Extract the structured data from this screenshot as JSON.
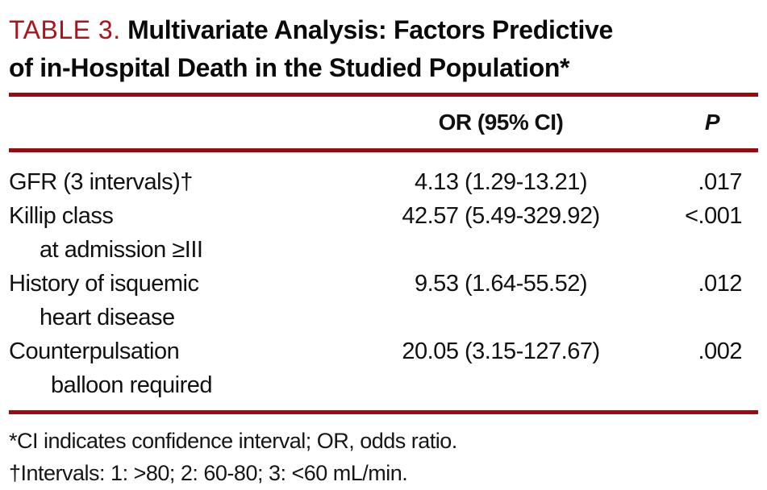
{
  "title": {
    "label": "TABLE 3.",
    "line1": "Multivariate Analysis: Factors Predictive",
    "line2": "of in-Hospital Death in the Studied Population*"
  },
  "table": {
    "header": {
      "or": "OR (95% CI)",
      "p": "P"
    },
    "rows": [
      {
        "factor": "GFR (3 intervals)†",
        "or": "4.13 (1.29-13.21)",
        "p": ".017"
      },
      {
        "factor": "Killip class",
        "factor_cont": "at admission ≥III",
        "or": "42.57 (5.49-329.92)",
        "p": "<.001"
      },
      {
        "factor": "History of isquemic",
        "factor_cont": "heart disease",
        "or": "9.53 (1.64-55.52)",
        "p": ".012"
      },
      {
        "factor": "Counterpulsation",
        "factor_cont": "balloon required",
        "or": "20.05 (3.15-127.67)",
        "p": ".002"
      }
    ]
  },
  "footnotes": [
    "*CI indicates confidence interval; OR, odds ratio.",
    "†Intervals: 1: >80; 2: 60-80; 3: <60 mL/min."
  ],
  "colors": {
    "title_accent": "#b0121a",
    "rule": "#9c0a10",
    "text": "#111111",
    "background": "#ffffff"
  }
}
